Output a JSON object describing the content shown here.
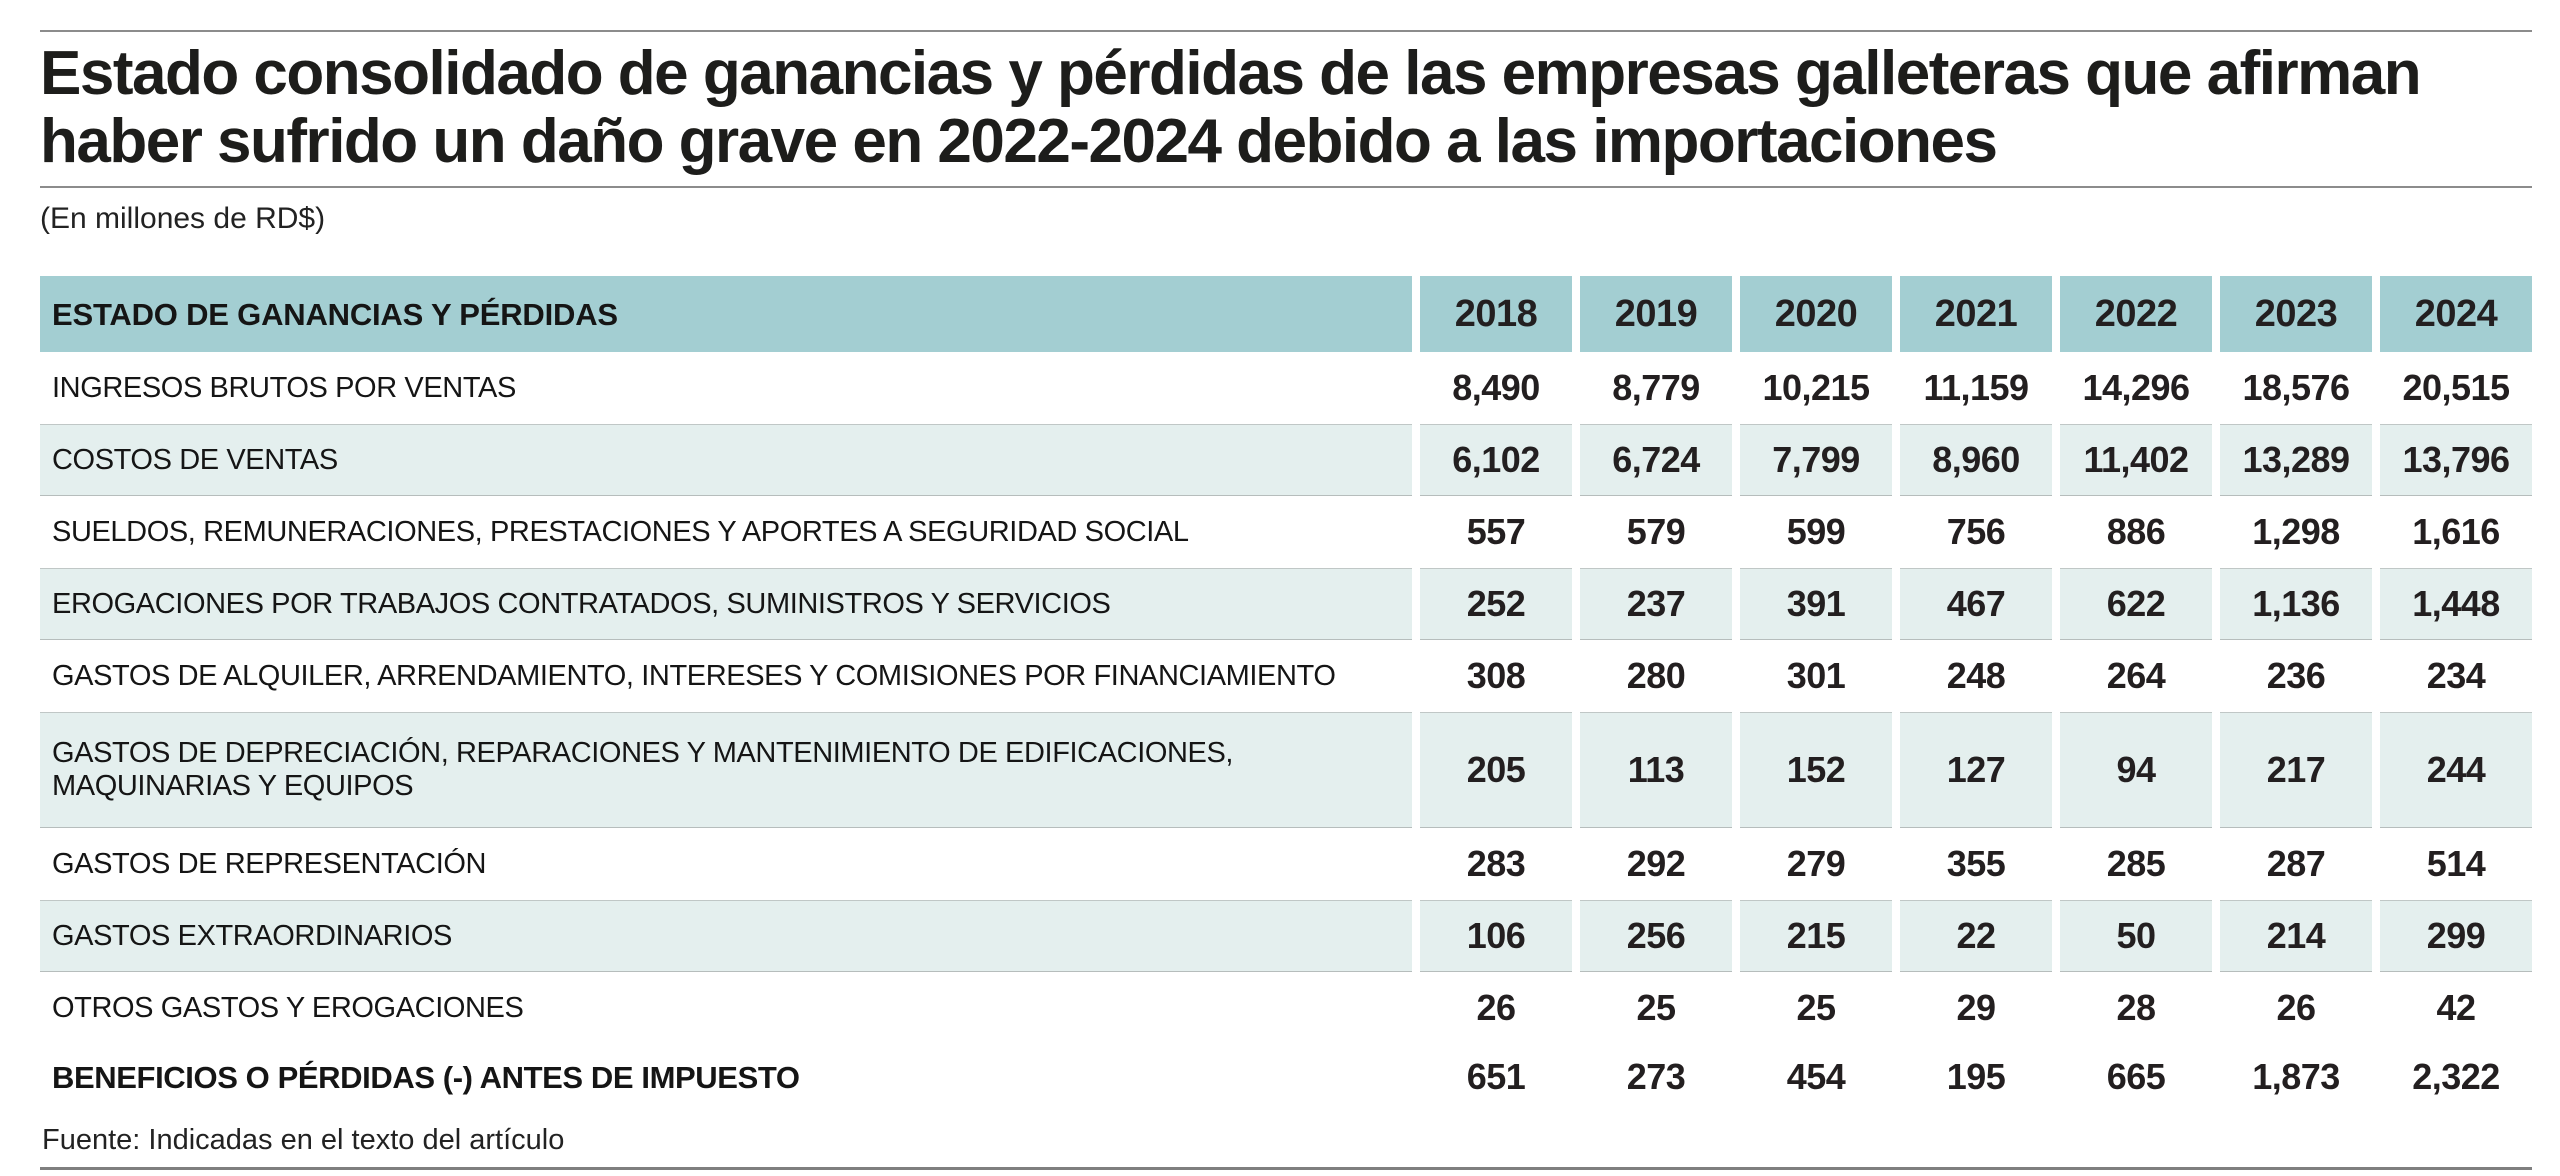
{
  "header": {
    "title": "Estado consolidado de ganancias y pérdidas de las empresas galleteras que afirman haber sufrido un daño grave en 2022-2024 debido a las importaciones",
    "subtitle": "(En millones de RD$)"
  },
  "table": {
    "header_label": "ESTADO DE GANANCIAS Y PÉRDIDAS",
    "years": [
      "2018",
      "2019",
      "2020",
      "2021",
      "2022",
      "2023",
      "2024"
    ],
    "rows": [
      {
        "label": "INGRESOS BRUTOS POR VENTAS",
        "values": [
          "8,490",
          "8,779",
          "10,215",
          "11,159",
          "14,296",
          "18,576",
          "20,515"
        ]
      },
      {
        "label": "COSTOS DE VENTAS",
        "values": [
          "6,102",
          "6,724",
          "7,799",
          "8,960",
          "11,402",
          "13,289",
          "13,796"
        ]
      },
      {
        "label": "SUELDOS, REMUNERACIONES, PRESTACIONES Y APORTES A SEGURIDAD SOCIAL",
        "values": [
          "557",
          "579",
          "599",
          "756",
          "886",
          "1,298",
          "1,616"
        ]
      },
      {
        "label": "EROGACIONES POR TRABAJOS CONTRATADOS, SUMINISTROS Y SERVICIOS",
        "values": [
          "252",
          "237",
          "391",
          "467",
          "622",
          "1,136",
          "1,448"
        ]
      },
      {
        "label": "GASTOS DE ALQUILER, ARRENDAMIENTO, INTERESES Y COMISIONES POR FINANCIAMIENTO",
        "values": [
          "308",
          "280",
          "301",
          "248",
          "264",
          "236",
          "234"
        ]
      },
      {
        "label": "GASTOS DE DEPRECIACIÓN, REPARACIONES Y MANTENIMIENTO DE EDIFICACIONES, MAQUINARIAS Y EQUIPOS",
        "values": [
          "205",
          "113",
          "152",
          "127",
          "94",
          "217",
          "244"
        ]
      },
      {
        "label": "GASTOS DE REPRESENTACIÓN",
        "values": [
          "283",
          "292",
          "279",
          "355",
          "285",
          "287",
          "514"
        ]
      },
      {
        "label": "GASTOS EXTRAORDINARIOS",
        "values": [
          "106",
          "256",
          "215",
          "22",
          "50",
          "214",
          "299"
        ]
      },
      {
        "label": "OTROS GASTOS Y EROGACIONES",
        "values": [
          "26",
          "25",
          "25",
          "29",
          "28",
          "26",
          "42"
        ]
      },
      {
        "label": "BENEFICIOS O PÉRDIDAS (-) ANTES DE IMPUESTO",
        "values": [
          "651",
          "273",
          "454",
          "195",
          "665",
          "1,873",
          "2,322"
        ]
      }
    ]
  },
  "footer": {
    "source": "Fuente: Indicadas en el texto del artículo"
  },
  "colors": {
    "header_teal": "#a3ced2",
    "row_shade": "#e4efee",
    "rule_gray": "#8c8c8c",
    "text_black": "#1d1d1b"
  },
  "chart_data": {
    "type": "table",
    "title": "Estado consolidado de ganancias y pérdidas de las empresas galleteras que afirman haber sufrido un daño grave en 2022-2024 debido a las importaciones",
    "unit": "millones de RD$",
    "columns": [
      "ESTADO DE GANANCIAS Y PÉRDIDAS",
      "2018",
      "2019",
      "2020",
      "2021",
      "2022",
      "2023",
      "2024"
    ],
    "rows": [
      {
        "label": "INGRESOS BRUTOS POR VENTAS",
        "values": [
          8490,
          8779,
          10215,
          11159,
          14296,
          18576,
          20515
        ]
      },
      {
        "label": "COSTOS DE VENTAS",
        "values": [
          6102,
          6724,
          7799,
          8960,
          11402,
          13289,
          13796
        ]
      },
      {
        "label": "SUELDOS, REMUNERACIONES, PRESTACIONES Y APORTES A SEGURIDAD SOCIAL",
        "values": [
          557,
          579,
          599,
          756,
          886,
          1298,
          1616
        ]
      },
      {
        "label": "EROGACIONES POR TRABAJOS CONTRATADOS, SUMINISTROS Y SERVICIOS",
        "values": [
          252,
          237,
          391,
          467,
          622,
          1136,
          1448
        ]
      },
      {
        "label": "GASTOS DE ALQUILER, ARRENDAMIENTO, INTERESES Y COMISIONES POR FINANCIAMIENTO",
        "values": [
          308,
          280,
          301,
          248,
          264,
          236,
          234
        ]
      },
      {
        "label": "GASTOS DE DEPRECIACIÓN, REPARACIONES Y MANTENIMIENTO DE EDIFICACIONES, MAQUINARIAS Y EQUIPOS",
        "values": [
          205,
          113,
          152,
          127,
          94,
          217,
          244
        ]
      },
      {
        "label": "GASTOS DE REPRESENTACIÓN",
        "values": [
          283,
          292,
          279,
          355,
          285,
          287,
          514
        ]
      },
      {
        "label": "GASTOS EXTRAORDINARIOS",
        "values": [
          106,
          256,
          215,
          22,
          50,
          214,
          299
        ]
      },
      {
        "label": "OTROS GASTOS Y EROGACIONES",
        "values": [
          26,
          25,
          25,
          29,
          28,
          26,
          42
        ]
      },
      {
        "label": "BENEFICIOS O PÉRDIDAS (-) ANTES DE IMPUESTO",
        "values": [
          651,
          273,
          454,
          195,
          665,
          1873,
          2322
        ]
      }
    ],
    "source": "Fuente: Indicadas en el texto del artículo"
  }
}
